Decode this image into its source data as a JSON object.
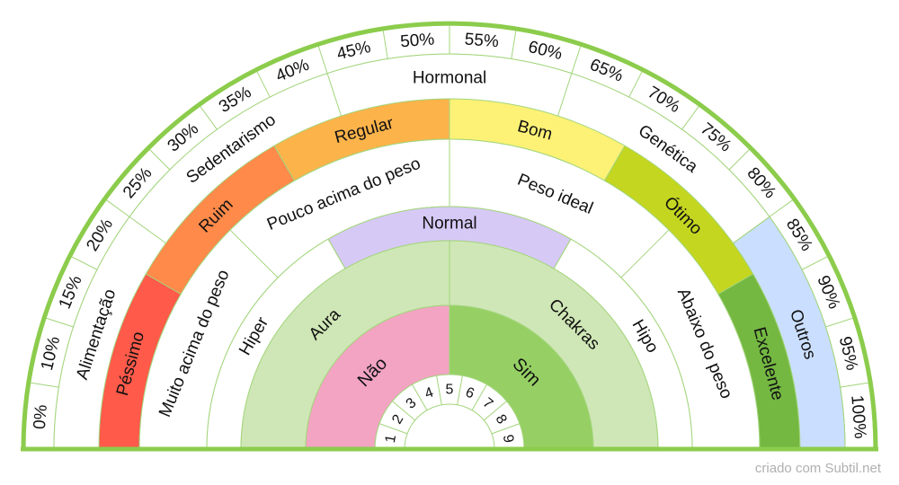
{
  "credit": "criado com Subtil.net",
  "colors": {
    "border": "#8ccc4c",
    "line": "#a3d57c",
    "pessimo": "#ff5a4a",
    "ruim": "#ff8a4a",
    "regular": "#fcb34a",
    "bom": "#fdf276",
    "otimo": "#c4d620",
    "excelente": "#74b842",
    "normal": "#d7c9f6",
    "outros": "#cadfff",
    "aura_chakras": "#cfe7b6",
    "nao": "#f2a4c2",
    "sim": "#96d064"
  },
  "percent_labels": [
    "0%",
    "10%",
    "15%",
    "20%",
    "25%",
    "30%",
    "35%",
    "40%",
    "45%",
    "50%",
    "55%",
    "60%",
    "65%",
    "70%",
    "75%",
    "80%",
    "85%",
    "90%",
    "95%",
    "100%"
  ],
  "causes": [
    "Alimentação",
    "Sedentarismo",
    "Hormonal",
    "Genética",
    "Outros"
  ],
  "ratings": [
    "Péssimo",
    "Ruim",
    "Regular",
    "Bom",
    "Ótimo",
    "Excelente"
  ],
  "weights": [
    "Muito acima do peso",
    "Pouco acima do peso",
    "Peso ideal",
    "Abaixo do peso"
  ],
  "thyroid": [
    "Hiper",
    "Normal",
    "Hipo"
  ],
  "energy": [
    "Aura",
    "Chakras"
  ],
  "answer": [
    "Não",
    "Sim"
  ],
  "numbers": [
    "1",
    "2",
    "3",
    "4",
    "5",
    "6",
    "7",
    "8",
    "9"
  ]
}
